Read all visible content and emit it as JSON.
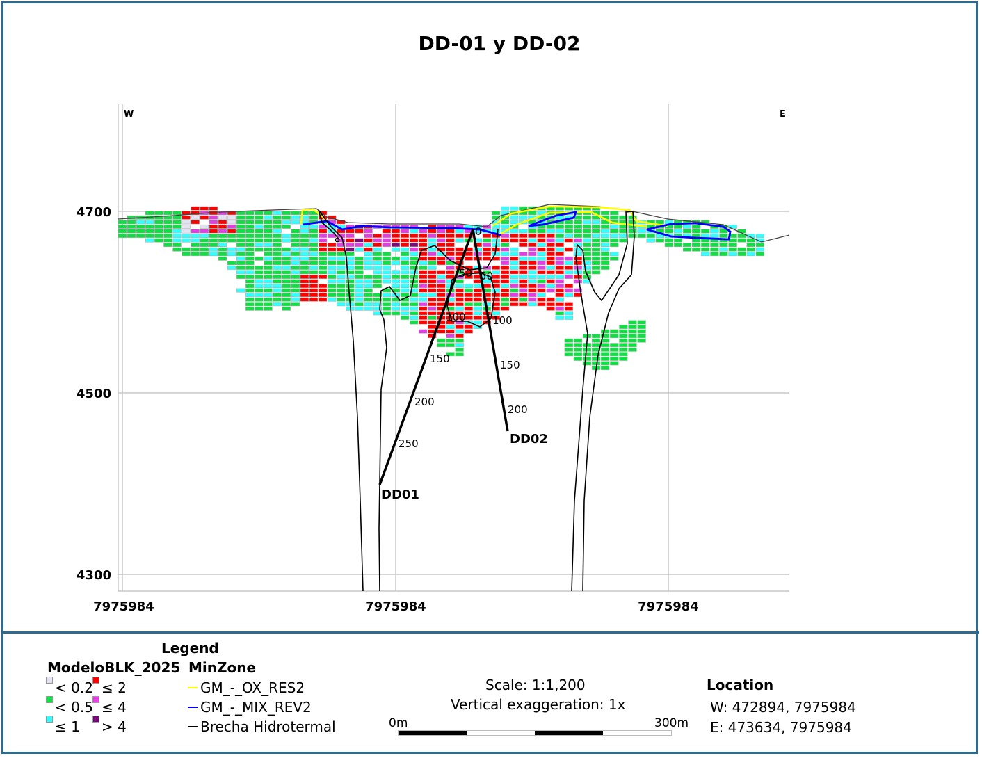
{
  "title": "DD-01 y DD-02",
  "section": {
    "west_label": "W",
    "east_label": "E",
    "elevation_ticks": [
      "4700",
      "4500",
      "4300"
    ],
    "northing_ticks": [
      "7975984",
      "7975984",
      "7975984"
    ],
    "drillholes": [
      {
        "name": "DD01",
        "depth_labels": [
          "0",
          "50",
          "100",
          "150",
          "200",
          "250"
        ]
      },
      {
        "name": "DD02",
        "depth_labels": [
          "50",
          "100",
          "150",
          "200"
        ]
      }
    ]
  },
  "legend": {
    "title": "Legend",
    "block_model_title": "ModeloBLK_2025",
    "block_classes": [
      {
        "label": "< 0.2",
        "color": "#e2e2f2"
      },
      {
        "label": "< 0.5",
        "color": "#11dd44"
      },
      {
        "label": "≤ 1",
        "color": "#33ffff"
      },
      {
        "label": "≤ 2",
        "color": "#ff0000"
      },
      {
        "label": "≤ 4",
        "color": "#e040e0"
      },
      {
        "label": "> 4",
        "color": "#7a0a7a"
      }
    ],
    "minzone_title": "MinZone",
    "minzones": [
      {
        "label": "GM_-_OX_RES2",
        "color": "#ffff00"
      },
      {
        "label": "GM_-_MIX_REV2",
        "color": "#0000ff"
      },
      {
        "label": "Brecha Hidrotermal",
        "color": "#000000"
      }
    ]
  },
  "scale": {
    "scale_text": "Scale: 1:1,200",
    "vertical_exaggeration": "Vertical exaggeration: 1x",
    "bar_start": "0m",
    "bar_end": "300m"
  },
  "location": {
    "title": "Location",
    "west": "W:  472894, 7975984",
    "east": "E:  473634, 7975984"
  }
}
